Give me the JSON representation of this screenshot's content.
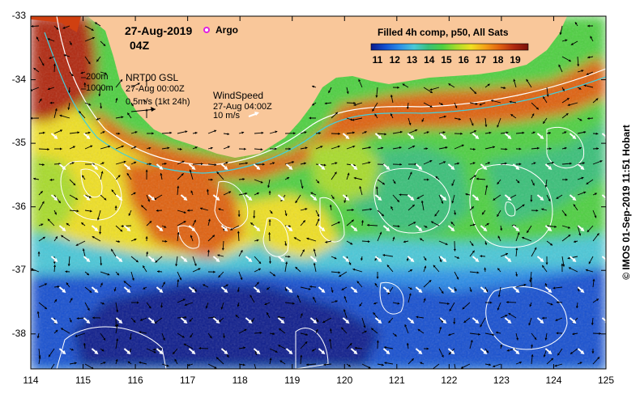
{
  "title": {
    "date": "27-Aug-2019",
    "time": "04Z",
    "argo_label": "Argo"
  },
  "colorbar": {
    "title": "Filled 4h comp, p50, All Sats",
    "ticks": [
      "11",
      "12",
      "13",
      "14",
      "15",
      "16",
      "17",
      "18",
      "19"
    ]
  },
  "isobaths": {
    "shallow": "200m",
    "deep": "1000m"
  },
  "currents_legend": {
    "source": "NRT00 GSL",
    "time": "27-Aug 00:00Z",
    "scale": "0.5m/s (1kt 24h)"
  },
  "wind_legend": {
    "label": "WindSpeed",
    "time": "27-Aug 04:00Z",
    "scale": "10 m/s"
  },
  "copyright": "© IMOS 01-Sep-2019 11:51 Hobart",
  "colors": {
    "land": "#f9c79a",
    "sst_palette": [
      "#0a1a8c",
      "#1450d0",
      "#2a8ee8",
      "#4ac8d8",
      "#38c078",
      "#4ed040",
      "#a8dc2a",
      "#f0e020",
      "#f4a018",
      "#e06010",
      "#b02810",
      "#7a1008"
    ],
    "argo_marker": "#e020e0",
    "isobath": "#40d0e0",
    "contour": "#ffffff"
  },
  "map": {
    "x_ticks": [
      "114",
      "115",
      "116",
      "117",
      "118",
      "119",
      "120",
      "121",
      "122",
      "123",
      "124",
      "125"
    ],
    "y_ticks": [
      "-33",
      "-34",
      "-35",
      "-36",
      "-37",
      "-38"
    ],
    "x_range": [
      114,
      125
    ],
    "y_range": [
      -38.55,
      -33
    ]
  }
}
